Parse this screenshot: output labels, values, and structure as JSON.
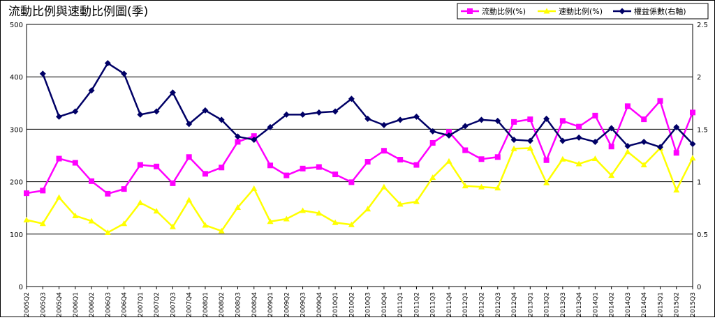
{
  "chart_data": {
    "type": "line",
    "title": "流動比例與速動比例圖(季)",
    "categories": [
      "2005Q2",
      "2005Q3",
      "2005Q4",
      "2006Q1",
      "2006Q2",
      "2006Q3",
      "2006Q4",
      "2007Q1",
      "2007Q2",
      "2007Q3",
      "2007Q4",
      "2008Q1",
      "2008Q2",
      "2008Q3",
      "2008Q4",
      "2009Q1",
      "2009Q2",
      "2009Q3",
      "2009Q4",
      "2010Q1",
      "2010Q2",
      "2010Q3",
      "2010Q4",
      "2011Q1",
      "2011Q2",
      "2011Q3",
      "2011Q4",
      "2012Q1",
      "2012Q2",
      "2012Q3",
      "2012Q4",
      "2013Q1",
      "2013Q2",
      "2013Q3",
      "2013Q4",
      "2014Q1",
      "2014Q2",
      "2014Q3",
      "2014Q4",
      "2015Q1",
      "2015Q2",
      "2015Q3"
    ],
    "y_left": {
      "min": 0,
      "max": 500,
      "ticks": [
        "0",
        "100",
        "200",
        "300",
        "400",
        "500"
      ]
    },
    "y_right": {
      "min": 0,
      "max": 2.5,
      "ticks": [
        "0",
        "0.5",
        "1",
        "1.5",
        "2",
        "2.5"
      ]
    },
    "grid": true,
    "legend_position": "top-right",
    "series": [
      {
        "name": "流動比例(%)",
        "axis": "left",
        "color": "#ff00ff",
        "marker": "square",
        "values": [
          178,
          183,
          244,
          236,
          201,
          177,
          186,
          232,
          229,
          197,
          247,
          215,
          227,
          276,
          287,
          231,
          212,
          225,
          228,
          214,
          199,
          238,
          259,
          242,
          232,
          274,
          295,
          260,
          243,
          247,
          314,
          319,
          241,
          316,
          305,
          326,
          267,
          344,
          319,
          354,
          255,
          332
        ]
      },
      {
        "name": "速動比例(%)",
        "axis": "left",
        "color": "#ffff00",
        "marker": "triangle",
        "values": [
          127,
          120,
          170,
          135,
          125,
          103,
          120,
          160,
          144,
          114,
          165,
          117,
          106,
          151,
          187,
          124,
          129,
          145,
          140,
          122,
          118,
          148,
          190,
          157,
          162,
          208,
          239,
          192,
          190,
          188,
          263,
          264,
          198,
          243,
          234,
          244,
          212,
          257,
          232,
          264,
          184,
          245
        ]
      },
      {
        "name": "權益係數(右軸)",
        "axis": "right",
        "color": "#000066",
        "marker": "diamond",
        "values": [
          null,
          2.03,
          1.62,
          1.67,
          1.87,
          2.13,
          2.03,
          1.64,
          1.67,
          1.85,
          1.55,
          1.68,
          1.59,
          1.43,
          1.4,
          1.52,
          1.64,
          1.64,
          1.66,
          1.67,
          1.79,
          1.6,
          1.54,
          1.59,
          1.62,
          1.48,
          1.44,
          1.53,
          1.59,
          1.58,
          1.4,
          1.39,
          1.6,
          1.39,
          1.42,
          1.38,
          1.51,
          1.34,
          1.38,
          1.33,
          1.52,
          1.36
        ]
      }
    ]
  }
}
